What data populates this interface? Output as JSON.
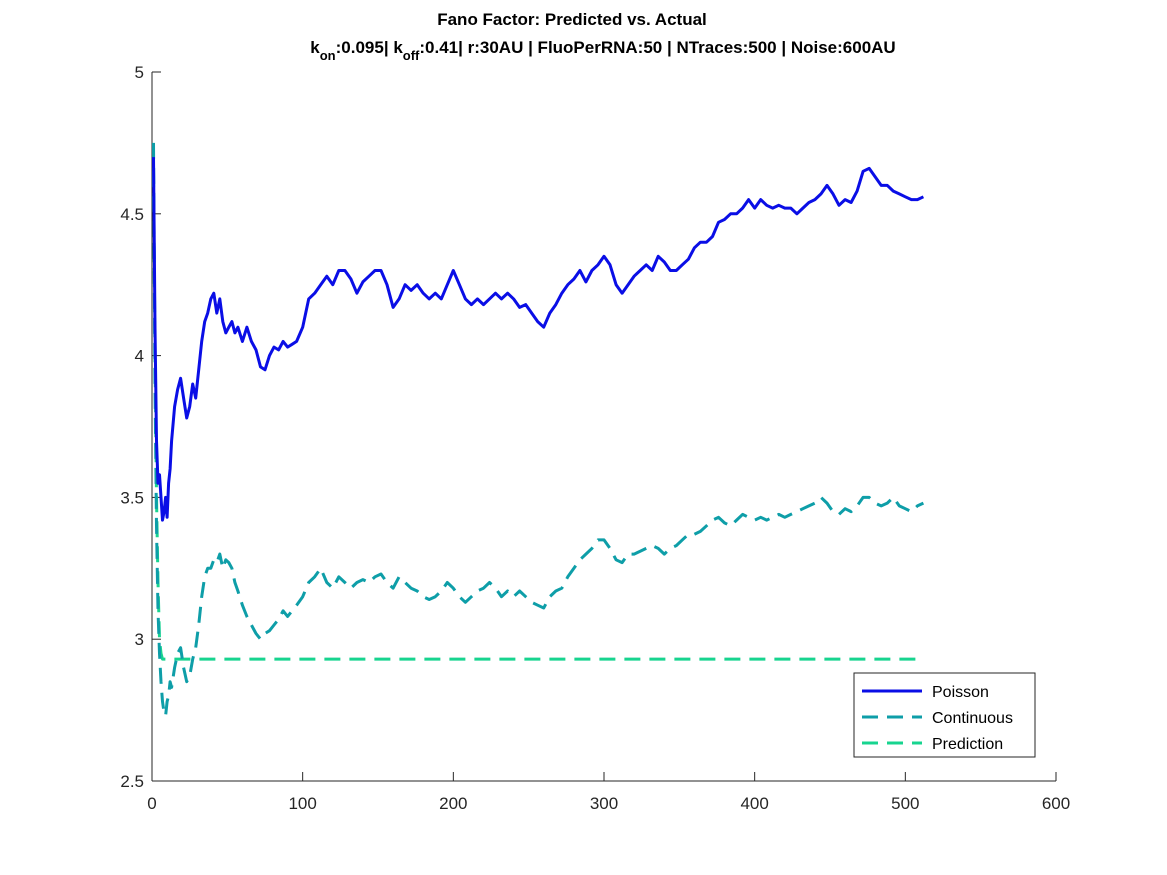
{
  "chart_data": {
    "type": "line",
    "title": "Fano Factor: Predicted vs. Actual",
    "subtitle": {
      "kon_label": "k",
      "kon_sub": "on",
      "kon_value": ":0.095|",
      "koff_label": " k",
      "koff_sub": "off",
      "koff_rest": ":0.41| r:30AU | FluoPerRNA:50 | NTraces:500 | Noise:600AU"
    },
    "xlabel": "",
    "ylabel": "",
    "xlim": [
      0,
      600
    ],
    "ylim": [
      2.5,
      5
    ],
    "xticks": [
      0,
      100,
      200,
      300,
      400,
      500,
      600
    ],
    "yticks": [
      2.5,
      3,
      3.5,
      4,
      4.5,
      5
    ],
    "xtick_labels": [
      "0",
      "100",
      "200",
      "300",
      "400",
      "500",
      "600"
    ],
    "ytick_labels": [
      "2.5",
      "3",
      "3.5",
      "4",
      "4.5",
      "5"
    ],
    "grid": false,
    "legend_position": "bottom-right",
    "series": [
      {
        "name": "Poisson",
        "color": "#0a0ee6",
        "style": "solid",
        "x": [
          1,
          2,
          3,
          4,
          5,
          6,
          7,
          8,
          9,
          10,
          11,
          12,
          13,
          15,
          17,
          19,
          21,
          23,
          25,
          27,
          29,
          31,
          33,
          35,
          37,
          39,
          41,
          43,
          45,
          47,
          49,
          51,
          53,
          55,
          57,
          60,
          63,
          66,
          69,
          72,
          75,
          78,
          81,
          84,
          87,
          90,
          93,
          96,
          100,
          104,
          108,
          112,
          116,
          120,
          124,
          128,
          132,
          136,
          140,
          144,
          148,
          152,
          156,
          160,
          164,
          168,
          172,
          176,
          180,
          184,
          188,
          192,
          196,
          200,
          204,
          208,
          212,
          216,
          220,
          224,
          228,
          232,
          236,
          240,
          244,
          248,
          252,
          256,
          260,
          264,
          268,
          272,
          276,
          280,
          284,
          288,
          292,
          296,
          300,
          304,
          308,
          312,
          316,
          320,
          324,
          328,
          332,
          336,
          340,
          344,
          348,
          352,
          356,
          360,
          364,
          368,
          372,
          376,
          380,
          384,
          388,
          392,
          396,
          400,
          404,
          408,
          412,
          416,
          420,
          424,
          428,
          432,
          436,
          440,
          444,
          448,
          452,
          456,
          460,
          464,
          468,
          472,
          476,
          480,
          484,
          488,
          492,
          496,
          500,
          504,
          508,
          512
        ],
        "y": [
          4.7,
          4.1,
          3.7,
          3.55,
          3.58,
          3.5,
          3.42,
          3.45,
          3.5,
          3.43,
          3.55,
          3.6,
          3.7,
          3.82,
          3.88,
          3.92,
          3.85,
          3.78,
          3.82,
          3.9,
          3.85,
          3.95,
          4.05,
          4.12,
          4.15,
          4.2,
          4.22,
          4.15,
          4.2,
          4.12,
          4.08,
          4.1,
          4.12,
          4.08,
          4.1,
          4.05,
          4.1,
          4.05,
          4.02,
          3.96,
          3.95,
          4.0,
          4.03,
          4.02,
          4.05,
          4.03,
          4.04,
          4.05,
          4.1,
          4.2,
          4.22,
          4.25,
          4.28,
          4.25,
          4.3,
          4.3,
          4.27,
          4.22,
          4.26,
          4.28,
          4.3,
          4.3,
          4.25,
          4.17,
          4.2,
          4.25,
          4.23,
          4.25,
          4.22,
          4.2,
          4.22,
          4.2,
          4.25,
          4.3,
          4.25,
          4.2,
          4.18,
          4.2,
          4.18,
          4.2,
          4.22,
          4.2,
          4.22,
          4.2,
          4.17,
          4.18,
          4.15,
          4.12,
          4.1,
          4.15,
          4.18,
          4.22,
          4.25,
          4.27,
          4.3,
          4.26,
          4.3,
          4.32,
          4.35,
          4.32,
          4.25,
          4.22,
          4.25,
          4.28,
          4.3,
          4.32,
          4.3,
          4.35,
          4.33,
          4.3,
          4.3,
          4.32,
          4.34,
          4.38,
          4.4,
          4.4,
          4.42,
          4.47,
          4.48,
          4.5,
          4.5,
          4.52,
          4.55,
          4.52,
          4.55,
          4.53,
          4.52,
          4.53,
          4.52,
          4.52,
          4.5,
          4.52,
          4.54,
          4.55,
          4.57,
          4.6,
          4.57,
          4.53,
          4.55,
          4.54,
          4.58,
          4.65,
          4.66,
          4.63,
          4.6,
          4.6,
          4.58,
          4.57,
          4.56,
          4.55,
          4.55,
          4.56
        ]
      },
      {
        "name": "Continuous",
        "color": "#0e9ea8",
        "style": "dashed",
        "x": [
          1,
          2,
          3,
          4,
          5,
          6,
          7,
          8,
          9,
          10,
          11,
          12,
          13,
          15,
          17,
          19,
          21,
          23,
          25,
          27,
          29,
          31,
          33,
          35,
          37,
          39,
          41,
          43,
          45,
          47,
          49,
          51,
          53,
          55,
          57,
          60,
          63,
          66,
          69,
          72,
          75,
          78,
          81,
          84,
          87,
          90,
          93,
          96,
          100,
          104,
          108,
          112,
          116,
          120,
          124,
          128,
          132,
          136,
          140,
          144,
          148,
          152,
          156,
          160,
          164,
          168,
          172,
          176,
          180,
          184,
          188,
          192,
          196,
          200,
          204,
          208,
          212,
          216,
          220,
          224,
          228,
          232,
          236,
          240,
          244,
          248,
          252,
          256,
          260,
          264,
          268,
          272,
          276,
          280,
          284,
          288,
          292,
          296,
          300,
          304,
          308,
          312,
          316,
          320,
          324,
          328,
          332,
          336,
          340,
          344,
          348,
          352,
          356,
          360,
          364,
          368,
          372,
          376,
          380,
          384,
          388,
          392,
          396,
          400,
          404,
          408,
          412,
          416,
          420,
          424,
          428,
          432,
          436,
          440,
          444,
          448,
          452,
          456,
          460,
          464,
          468,
          472,
          476,
          480,
          484,
          488,
          492,
          496,
          500,
          504,
          508,
          512
        ],
        "y": [
          4.75,
          3.9,
          3.4,
          3.1,
          2.95,
          2.85,
          2.78,
          2.74,
          2.73,
          2.78,
          2.8,
          2.85,
          2.83,
          2.9,
          2.95,
          2.97,
          2.9,
          2.85,
          2.87,
          2.93,
          2.97,
          3.05,
          3.15,
          3.22,
          3.25,
          3.25,
          3.28,
          3.27,
          3.3,
          3.25,
          3.28,
          3.27,
          3.25,
          3.2,
          3.17,
          3.12,
          3.08,
          3.05,
          3.02,
          3.0,
          3.02,
          3.03,
          3.05,
          3.07,
          3.1,
          3.08,
          3.1,
          3.12,
          3.15,
          3.2,
          3.22,
          3.25,
          3.2,
          3.18,
          3.22,
          3.2,
          3.18,
          3.2,
          3.21,
          3.2,
          3.22,
          3.23,
          3.2,
          3.18,
          3.22,
          3.2,
          3.18,
          3.17,
          3.15,
          3.14,
          3.15,
          3.17,
          3.2,
          3.18,
          3.15,
          3.13,
          3.15,
          3.17,
          3.18,
          3.2,
          3.18,
          3.15,
          3.17,
          3.15,
          3.17,
          3.15,
          3.13,
          3.12,
          3.11,
          3.15,
          3.17,
          3.18,
          3.22,
          3.25,
          3.28,
          3.3,
          3.32,
          3.35,
          3.35,
          3.32,
          3.28,
          3.27,
          3.3,
          3.3,
          3.31,
          3.32,
          3.33,
          3.32,
          3.3,
          3.32,
          3.33,
          3.35,
          3.37,
          3.37,
          3.38,
          3.4,
          3.42,
          3.43,
          3.41,
          3.4,
          3.42,
          3.44,
          3.43,
          3.42,
          3.43,
          3.42,
          3.43,
          3.44,
          3.43,
          3.44,
          3.45,
          3.46,
          3.47,
          3.48,
          3.5,
          3.48,
          3.45,
          3.44,
          3.46,
          3.45,
          3.47,
          3.5,
          3.5,
          3.48,
          3.47,
          3.48,
          3.5,
          3.47,
          3.46,
          3.45,
          3.47,
          3.48
        ]
      },
      {
        "name": "Prediction",
        "color": "#17d48f",
        "style": "dashed",
        "x": [
          1,
          2,
          3,
          4,
          5,
          6,
          7,
          8,
          10,
          12,
          512
        ],
        "y": [
          4.65,
          4.0,
          3.5,
          3.2,
          3.0,
          2.95,
          2.93,
          2.93,
          2.93,
          2.93,
          2.93
        ]
      }
    ]
  }
}
